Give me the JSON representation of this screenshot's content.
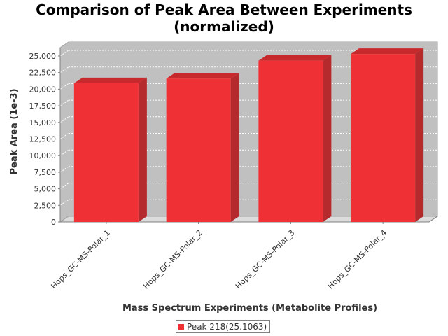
{
  "chart_data": {
    "type": "bar",
    "title": [
      "Comparison of Peak Area Between Experiments",
      "(normalized)"
    ],
    "xlabel": "Mass Spectrum Experiments (Metabolite Profiles)",
    "ylabel": "Peak Area (1e-3)",
    "categories": [
      "Hops_GC-MS-Polar_1",
      "Hops_GC-MS-Polar_2",
      "Hops_GC-MS-Polar_3",
      "Hops_GC-MS-Polar_4"
    ],
    "series": [
      {
        "name": "Peak 218(25.1063)",
        "values": [
          20900,
          21600,
          24300,
          25300
        ]
      }
    ],
    "ylim": [
      0,
      25000
    ],
    "yticks": [
      0,
      2500,
      5000,
      7500,
      10000,
      12500,
      15000,
      17500,
      20000,
      22500,
      25000
    ],
    "ytick_labels": [
      "0",
      "2,500",
      "5,000",
      "7,500",
      "10,000",
      "12,500",
      "15,000",
      "17,500",
      "20,000",
      "22,500",
      "25,000"
    ],
    "grid": true,
    "legend_position": "bottom",
    "style": "3d",
    "colors": {
      "bar_front": "#ef3135",
      "bar_side": "#b52a2c",
      "bar_top": "#c7292d",
      "plot_background": "#c0c0c0",
      "plot_wall": "#dcdcdc"
    }
  }
}
